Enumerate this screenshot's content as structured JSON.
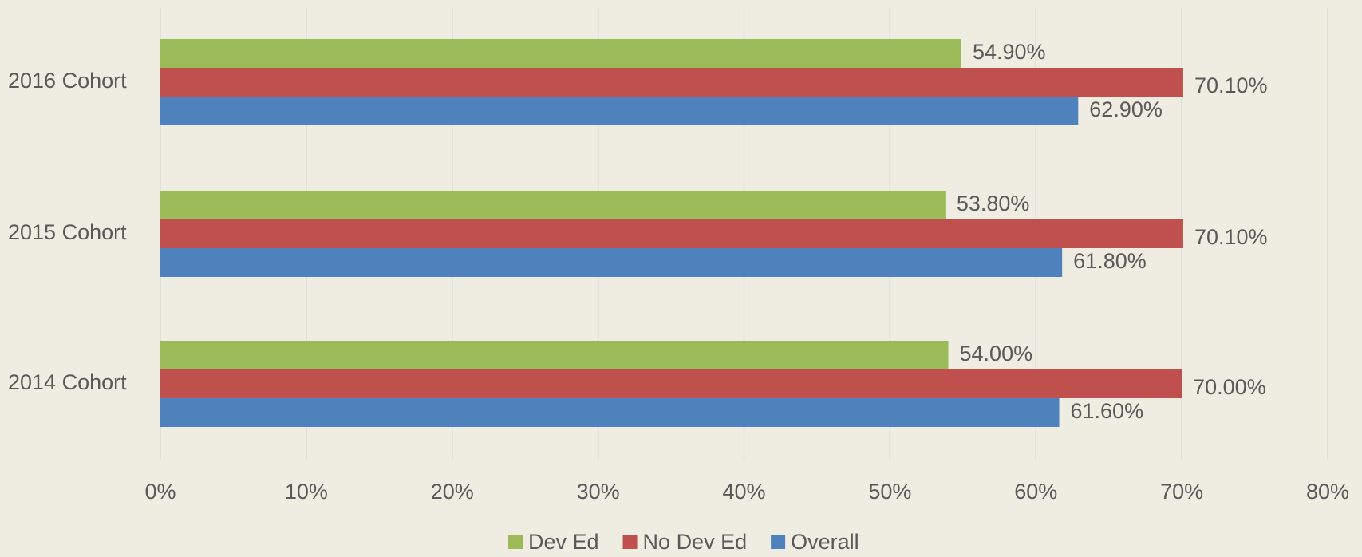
{
  "chart_data": {
    "type": "hbar",
    "categories": [
      "2014 Cohort",
      "2015 Cohort",
      "2016 Cohort"
    ],
    "series": [
      {
        "name": "Dev Ed",
        "color": "#9bbb59",
        "values": [
          54.0,
          53.8,
          54.9
        ],
        "value_labels": [
          "54.00%",
          "53.80%",
          "54.90%"
        ]
      },
      {
        "name": "No Dev Ed",
        "color": "#c0504d",
        "values": [
          70.0,
          70.1,
          70.1
        ],
        "value_labels": [
          "70.00%",
          "70.10%",
          "70.10%"
        ]
      },
      {
        "name": "Overall",
        "color": "#4f81bd",
        "values": [
          61.6,
          61.8,
          62.9
        ],
        "value_labels": [
          "61.60%",
          "61.80%",
          "62.90%"
        ]
      }
    ],
    "xlim": [
      0,
      80
    ],
    "xticks": [
      {
        "value": 0,
        "label": "0%"
      },
      {
        "value": 10,
        "label": "10%"
      },
      {
        "value": 20,
        "label": "20%"
      },
      {
        "value": 30,
        "label": "30%"
      },
      {
        "value": 40,
        "label": "40%"
      },
      {
        "value": 50,
        "label": "50%"
      },
      {
        "value": 60,
        "label": "60%"
      },
      {
        "value": 70,
        "label": "70%"
      },
      {
        "value": 80,
        "label": "80%"
      }
    ],
    "grid": true,
    "legend": "bottom"
  }
}
